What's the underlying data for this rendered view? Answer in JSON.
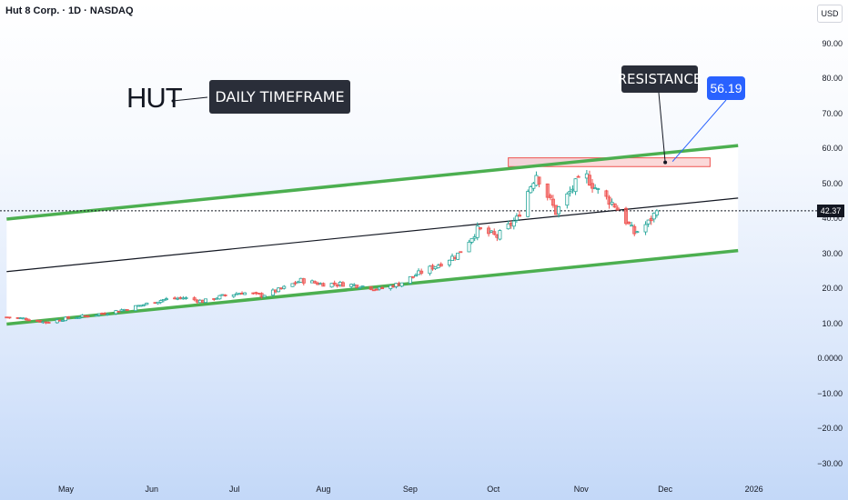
{
  "header": {
    "title": "Hut 8 Corp. · 1D · NASDAQ",
    "currency": "USD"
  },
  "annotations": {
    "ticker": "HUT",
    "timeframe": "DAILY TIMEFRAME",
    "resistance": "RESISTANCE",
    "resistance_price": "56.19",
    "last_price": "42.37"
  },
  "colors": {
    "up": "#26a69a",
    "down": "#ef5350",
    "channel": "#4caf50",
    "zone": "#ef9a9a",
    "label": "#2a2e39",
    "price_box": "#2962ff"
  },
  "chart_data": {
    "type": "candlestick",
    "title": "Hut 8 Corp. · 1D · NASDAQ",
    "y_tick_labels": [
      "90.00",
      "80.00",
      "70.00",
      "60.00",
      "50.00",
      "40.00",
      "30.00",
      "20.00",
      "10.00",
      "0.0000",
      "−10.00",
      "−20.00",
      "−30.00"
    ],
    "y_ticks": [
      90,
      80,
      70,
      60,
      50,
      40,
      30,
      20,
      10,
      0,
      -10,
      -20,
      -30
    ],
    "x_tick_labels": [
      "May",
      "Jun",
      "Jul",
      "Aug",
      "Sep",
      "Oct",
      "Nov",
      "Dec",
      "2026"
    ],
    "x_ticks": [
      "2025-05-01",
      "2025-06-01",
      "2025-07-01",
      "2025-08-01",
      "2025-09-01",
      "2025-10-01",
      "2025-11-01",
      "2025-12-01",
      "2026-01-01"
    ],
    "ylim": [
      -32,
      95
    ],
    "xlim": [
      "2025-04-09",
      "2026-01-20"
    ],
    "last_price": 42.37,
    "closes": [
      [
        "2025-04-10",
        12
      ],
      [
        "2025-04-17",
        11.5
      ],
      [
        "2025-04-24",
        10.5
      ],
      [
        "2025-05-01",
        11.6
      ],
      [
        "2025-05-08",
        12.3
      ],
      [
        "2025-05-15",
        13.1
      ],
      [
        "2025-05-22",
        14.2
      ],
      [
        "2025-05-29",
        15.6
      ],
      [
        "2025-06-05",
        17
      ],
      [
        "2025-06-12",
        17.5
      ],
      [
        "2025-06-19",
        16.5
      ],
      [
        "2025-06-26",
        18
      ],
      [
        "2025-07-03",
        19
      ],
      [
        "2025-07-10",
        18.2
      ],
      [
        "2025-07-17",
        20
      ],
      [
        "2025-07-24",
        22.5
      ],
      [
        "2025-07-31",
        21.5
      ],
      [
        "2025-08-07",
        21.5
      ],
      [
        "2025-08-14",
        21
      ],
      [
        "2025-08-21",
        20
      ],
      [
        "2025-08-28",
        21.5
      ],
      [
        "2025-09-04",
        24.5
      ],
      [
        "2025-09-11",
        27
      ],
      [
        "2025-09-18",
        30
      ],
      [
        "2025-09-25",
        37
      ],
      [
        "2025-10-02",
        35
      ],
      [
        "2025-10-09",
        40
      ],
      [
        "2025-10-13",
        48
      ],
      [
        "2025-10-16",
        53
      ],
      [
        "2025-10-23",
        42
      ],
      [
        "2025-10-30",
        50
      ],
      [
        "2025-11-03",
        52
      ],
      [
        "2025-11-07",
        48
      ],
      [
        "2025-11-13",
        44
      ],
      [
        "2025-11-20",
        36
      ],
      [
        "2025-11-25",
        39
      ],
      [
        "2025-11-28",
        42.37
      ]
    ],
    "channel": {
      "upper": [
        [
          "2025-04-10",
          40
        ],
        [
          "2025-12-27",
          61
        ]
      ],
      "middle": [
        [
          "2025-04-10",
          25
        ],
        [
          "2025-12-27",
          46
        ]
      ],
      "lower": [
        [
          "2025-04-10",
          10
        ],
        [
          "2025-12-27",
          31
        ]
      ]
    },
    "resistance_zone": {
      "from": "2025-10-06",
      "to": "2025-12-17",
      "low": 55,
      "high": 57.5
    },
    "resistance_price": 56.19
  }
}
